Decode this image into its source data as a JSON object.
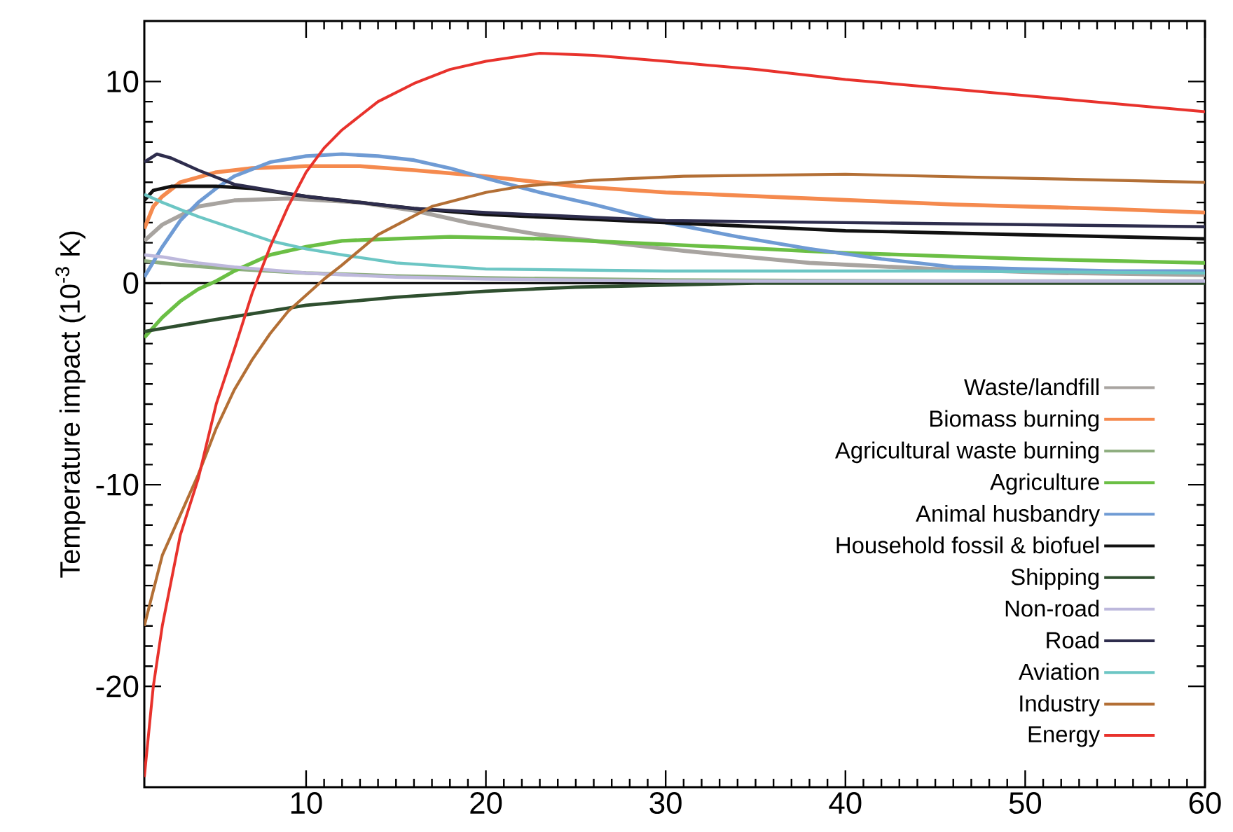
{
  "chart_data": {
    "type": "line",
    "ylabel": "Temperature impact (10$^{-3}$ K)",
    "xlim": [
      1,
      60
    ],
    "ylim": [
      -25,
      13
    ],
    "xticks": [
      10,
      20,
      30,
      40,
      50,
      60
    ],
    "yticks": [
      -20,
      -10,
      0,
      10
    ],
    "grid": false,
    "legend": "bottom right",
    "line_style": "solid",
    "marker": "none",
    "ref_lines": [
      {
        "axis": "y",
        "value": 0,
        "color": "#000000"
      }
    ],
    "series": [
      {
        "name": "Waste/landfill",
        "color": "#a8a4a0",
        "x": [
          1,
          2,
          4,
          6,
          9,
          13,
          16,
          19,
          23,
          27,
          31,
          38,
          45,
          52,
          60
        ],
        "values": [
          2.1,
          2.9,
          3.8,
          4.1,
          4.2,
          4.0,
          3.6,
          3.0,
          2.4,
          2.0,
          1.6,
          1.0,
          0.7,
          0.5,
          0.4
        ]
      },
      {
        "name": "Biomass burning",
        "color": "#f58a4e",
        "x": [
          1,
          1.5,
          2,
          3,
          5,
          7,
          10,
          13,
          16,
          20,
          25,
          30,
          38,
          46,
          54,
          60
        ],
        "values": [
          2.7,
          3.8,
          4.3,
          5.0,
          5.5,
          5.7,
          5.8,
          5.8,
          5.6,
          5.3,
          4.8,
          4.5,
          4.2,
          3.9,
          3.7,
          3.5
        ]
      },
      {
        "name": "Agricultural waste burning",
        "color": "#8fae80",
        "x": [
          1,
          3,
          6,
          10,
          15,
          20,
          30,
          45,
          60
        ],
        "values": [
          1.1,
          0.9,
          0.7,
          0.5,
          0.35,
          0.25,
          0.15,
          0.1,
          0.1
        ]
      },
      {
        "name": "Agriculture",
        "color": "#6bbf45",
        "x": [
          1,
          2,
          3,
          4,
          5,
          6,
          8,
          10,
          12,
          15,
          18,
          23,
          28,
          33,
          40,
          50,
          60
        ],
        "values": [
          -2.7,
          -1.7,
          -0.9,
          -0.3,
          0.1,
          0.6,
          1.4,
          1.8,
          2.1,
          2.2,
          2.3,
          2.2,
          2.0,
          1.8,
          1.5,
          1.2,
          1.0
        ]
      },
      {
        "name": "Animal husbandry",
        "color": "#6f9bd4",
        "x": [
          1,
          2,
          3,
          4,
          5,
          6,
          8,
          10,
          12,
          14,
          16,
          18,
          20,
          23,
          26,
          30,
          34,
          38,
          42,
          46,
          50,
          55,
          60
        ],
        "values": [
          0.3,
          1.8,
          3.1,
          4.0,
          4.7,
          5.3,
          6.0,
          6.3,
          6.4,
          6.3,
          6.1,
          5.7,
          5.2,
          4.5,
          3.9,
          3.0,
          2.3,
          1.7,
          1.2,
          0.8,
          0.7,
          0.6,
          0.6
        ]
      },
      {
        "name": "Household fossil & biofuel",
        "color": "#111111",
        "x": [
          1,
          1.5,
          2.5,
          5,
          7,
          10,
          13,
          16,
          20,
          25,
          30,
          40,
          50,
          60
        ],
        "values": [
          4.1,
          4.6,
          4.8,
          4.8,
          4.7,
          4.3,
          4.0,
          3.7,
          3.4,
          3.2,
          3.0,
          2.6,
          2.4,
          2.2
        ]
      },
      {
        "name": "Shipping",
        "color": "#2f4f2f",
        "x": [
          1,
          5,
          10,
          15,
          20,
          25,
          30,
          35,
          60
        ],
        "values": [
          -2.4,
          -1.8,
          -1.1,
          -0.7,
          -0.4,
          -0.2,
          -0.1,
          0,
          0
        ]
      },
      {
        "name": "Non-road",
        "color": "#bdb8dc",
        "x": [
          1,
          2,
          4,
          6,
          10,
          15,
          20,
          30,
          45,
          60
        ],
        "values": [
          1.4,
          1.3,
          1.0,
          0.8,
          0.5,
          0.3,
          0.2,
          0.1,
          0.1,
          0.1
        ]
      },
      {
        "name": "Road",
        "color": "#2e2d4d",
        "x": [
          1,
          1.7,
          2.5,
          4,
          6,
          8,
          10,
          13,
          16,
          20,
          25,
          30,
          40,
          50,
          60
        ],
        "values": [
          6.0,
          6.4,
          6.2,
          5.6,
          4.9,
          4.6,
          4.3,
          4.0,
          3.7,
          3.5,
          3.3,
          3.1,
          3.0,
          2.9,
          2.8
        ]
      },
      {
        "name": "Aviation",
        "color": "#6cc6c4",
        "x": [
          1,
          2,
          4,
          6,
          8,
          10,
          12,
          15,
          20,
          30,
          45,
          60
        ],
        "values": [
          4.4,
          4.0,
          3.3,
          2.7,
          2.1,
          1.7,
          1.4,
          1.0,
          0.7,
          0.6,
          0.6,
          0.5
        ]
      },
      {
        "name": "Industry",
        "color": "#b36f35",
        "x": [
          1,
          2,
          3,
          4,
          5,
          6,
          7,
          8,
          9,
          10,
          11,
          12,
          14,
          17,
          20,
          22,
          26,
          31,
          40,
          50,
          60
        ],
        "values": [
          -17,
          -13.5,
          -11.5,
          -9.5,
          -7.2,
          -5.3,
          -3.8,
          -2.5,
          -1.4,
          -0.6,
          0.2,
          0.9,
          2.4,
          3.8,
          4.5,
          4.8,
          5.1,
          5.3,
          5.4,
          5.2,
          5.0
        ]
      },
      {
        "name": "Energy",
        "color": "#e8322c",
        "x": [
          1,
          1.5,
          2,
          3,
          4,
          5,
          6,
          7,
          8,
          9,
          10,
          11,
          12,
          13,
          14,
          16,
          18,
          20,
          23,
          26,
          30,
          35,
          40,
          45,
          50,
          55,
          60
        ],
        "values": [
          -24.5,
          -20,
          -17,
          -12.5,
          -9.7,
          -6,
          -3.3,
          -0.5,
          1.8,
          3.8,
          5.5,
          6.7,
          7.6,
          8.3,
          9,
          9.9,
          10.6,
          11.0,
          11.4,
          11.3,
          11.0,
          10.6,
          10.1,
          9.7,
          9.3,
          8.9,
          8.5
        ]
      }
    ]
  }
}
